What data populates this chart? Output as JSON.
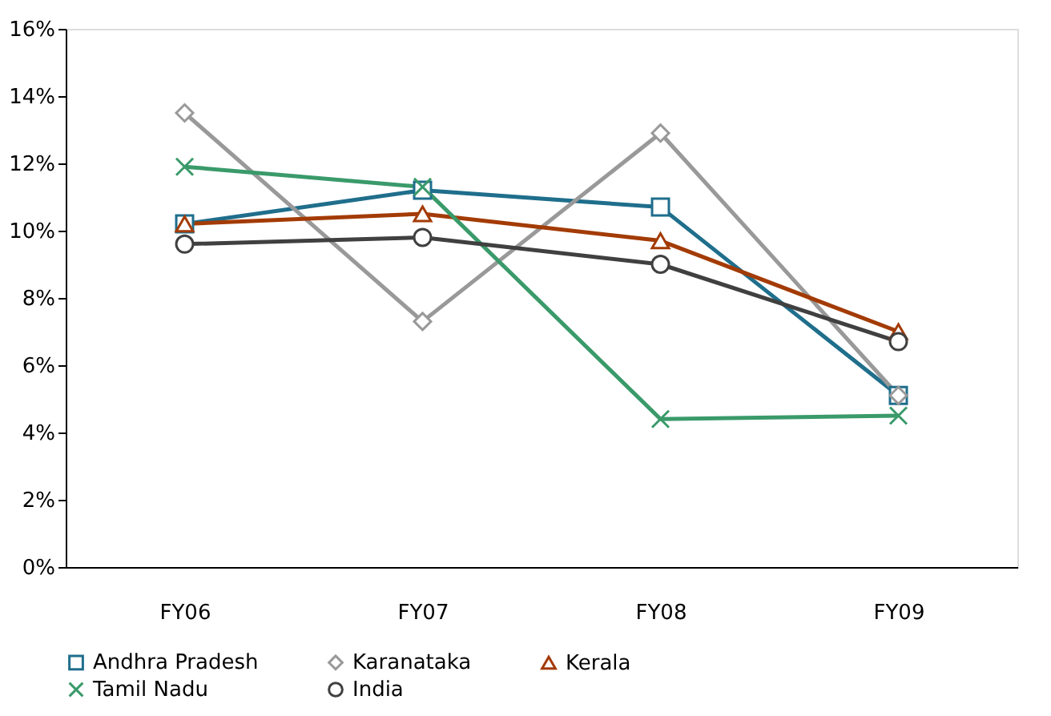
{
  "chart_data": {
    "type": "line",
    "categories": [
      "FY06",
      "FY07",
      "FY08",
      "FY09"
    ],
    "series": [
      {
        "name": "Andhra Pradesh",
        "color": "#1f6e8c",
        "marker": "square",
        "values": [
          10.2,
          11.2,
          10.7,
          5.1
        ]
      },
      {
        "name": "Karanataka",
        "color": "#999999",
        "marker": "diamond",
        "values": [
          13.5,
          7.3,
          12.9,
          5.1
        ]
      },
      {
        "name": "Kerala",
        "color": "#a33b05",
        "marker": "triangle",
        "values": [
          10.2,
          10.5,
          9.7,
          7.0
        ]
      },
      {
        "name": "Tamil Nadu",
        "color": "#3a9a6a",
        "marker": "cross",
        "values": [
          11.9,
          11.3,
          4.4,
          4.5
        ]
      },
      {
        "name": "India",
        "color": "#404040",
        "marker": "circle",
        "values": [
          9.6,
          9.8,
          9.0,
          6.7
        ]
      }
    ],
    "ylim": [
      0,
      16
    ],
    "yticks": [
      {
        "value": 0,
        "label": "0%"
      },
      {
        "value": 2,
        "label": "2%"
      },
      {
        "value": 4,
        "label": "4%"
      },
      {
        "value": 6,
        "label": "6%"
      },
      {
        "value": 8,
        "label": "8%"
      },
      {
        "value": 10,
        "label": "10%"
      },
      {
        "value": 12,
        "label": "12%"
      },
      {
        "value": 14,
        "label": "14%"
      },
      {
        "value": 16,
        "label": "16%"
      }
    ],
    "grid": false,
    "legend": "bottom",
    "line_style": "solid"
  }
}
